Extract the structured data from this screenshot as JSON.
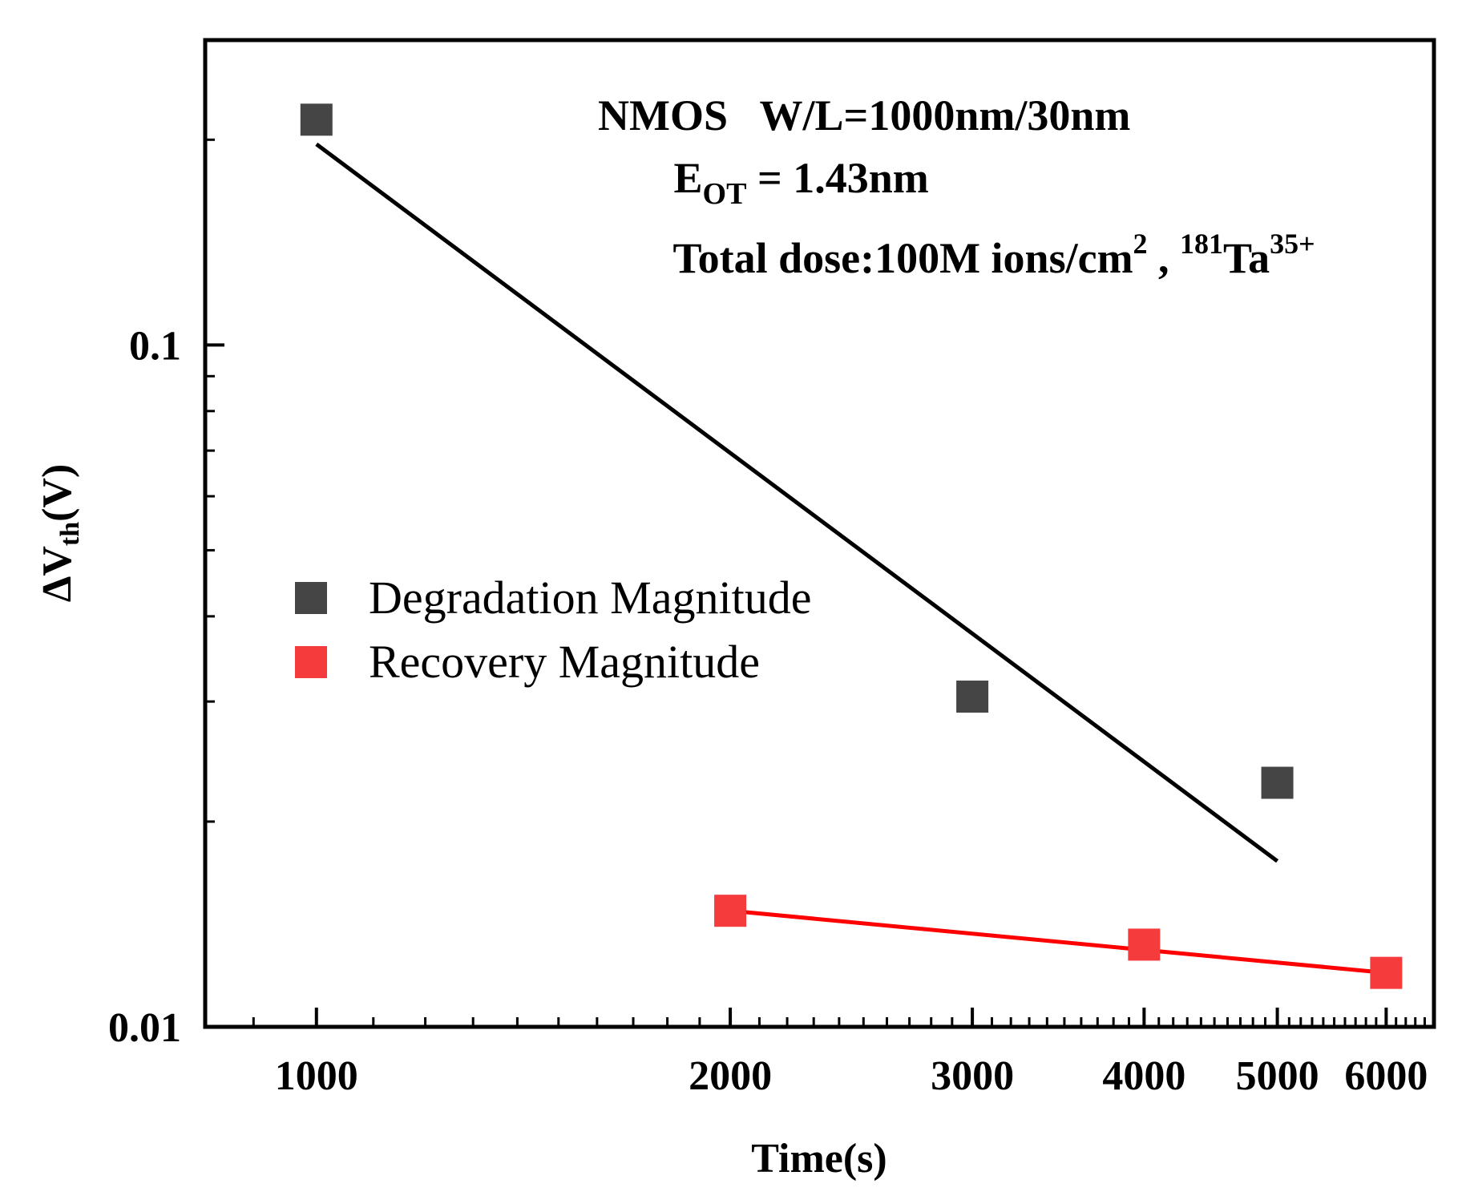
{
  "chart_data": {
    "type": "scatter",
    "x_scale": "log",
    "y_scale": "log",
    "xlabel": "Time(s)",
    "ylabel": {
      "main": "ΔV",
      "sub": "th",
      "unit": "(V)"
    },
    "xlim": [
      830,
      6500
    ],
    "ylim": [
      0.01,
      0.28
    ],
    "x_ticks": [
      1000,
      2000,
      3000,
      4000,
      5000,
      6000
    ],
    "x_tick_labels": [
      "1000",
      "2000",
      "3000",
      "4000",
      "5000",
      "6000"
    ],
    "y_ticks": [
      0.01,
      0.1
    ],
    "y_tick_labels": [
      "0.01",
      "0.1"
    ],
    "annotation": {
      "line1": "NMOS   W/L=1000nm/30nm",
      "line2": {
        "main": "E",
        "sub": "OT",
        "rest": " = 1.43nm"
      },
      "line3": {
        "text": "Total dose:100M ions/cm",
        "sup1": "2",
        "mid": " , ",
        "sup2": "181",
        "elem": "Ta",
        "sup3": "35+"
      }
    },
    "series": [
      {
        "name": "Degradation Magnitude",
        "color": "#454545",
        "marker": "square",
        "x": [
          1000,
          3000,
          5000
        ],
        "y": [
          0.214,
          0.0305,
          0.0228
        ],
        "fit": {
          "color": "#000000",
          "x": [
            1000,
            5000
          ],
          "y": [
            0.197,
            0.0175
          ]
        }
      },
      {
        "name": "Recovery Magnitude",
        "color": "#f53b3b",
        "marker": "square",
        "x": [
          2000,
          4000,
          6000
        ],
        "y": [
          0.0148,
          0.0132,
          0.012
        ],
        "fit": {
          "color": "#ff0000",
          "x": [
            2000,
            6000
          ],
          "y": [
            0.0148,
            0.012
          ]
        }
      }
    ],
    "legend": {
      "position": "middle-left"
    }
  }
}
